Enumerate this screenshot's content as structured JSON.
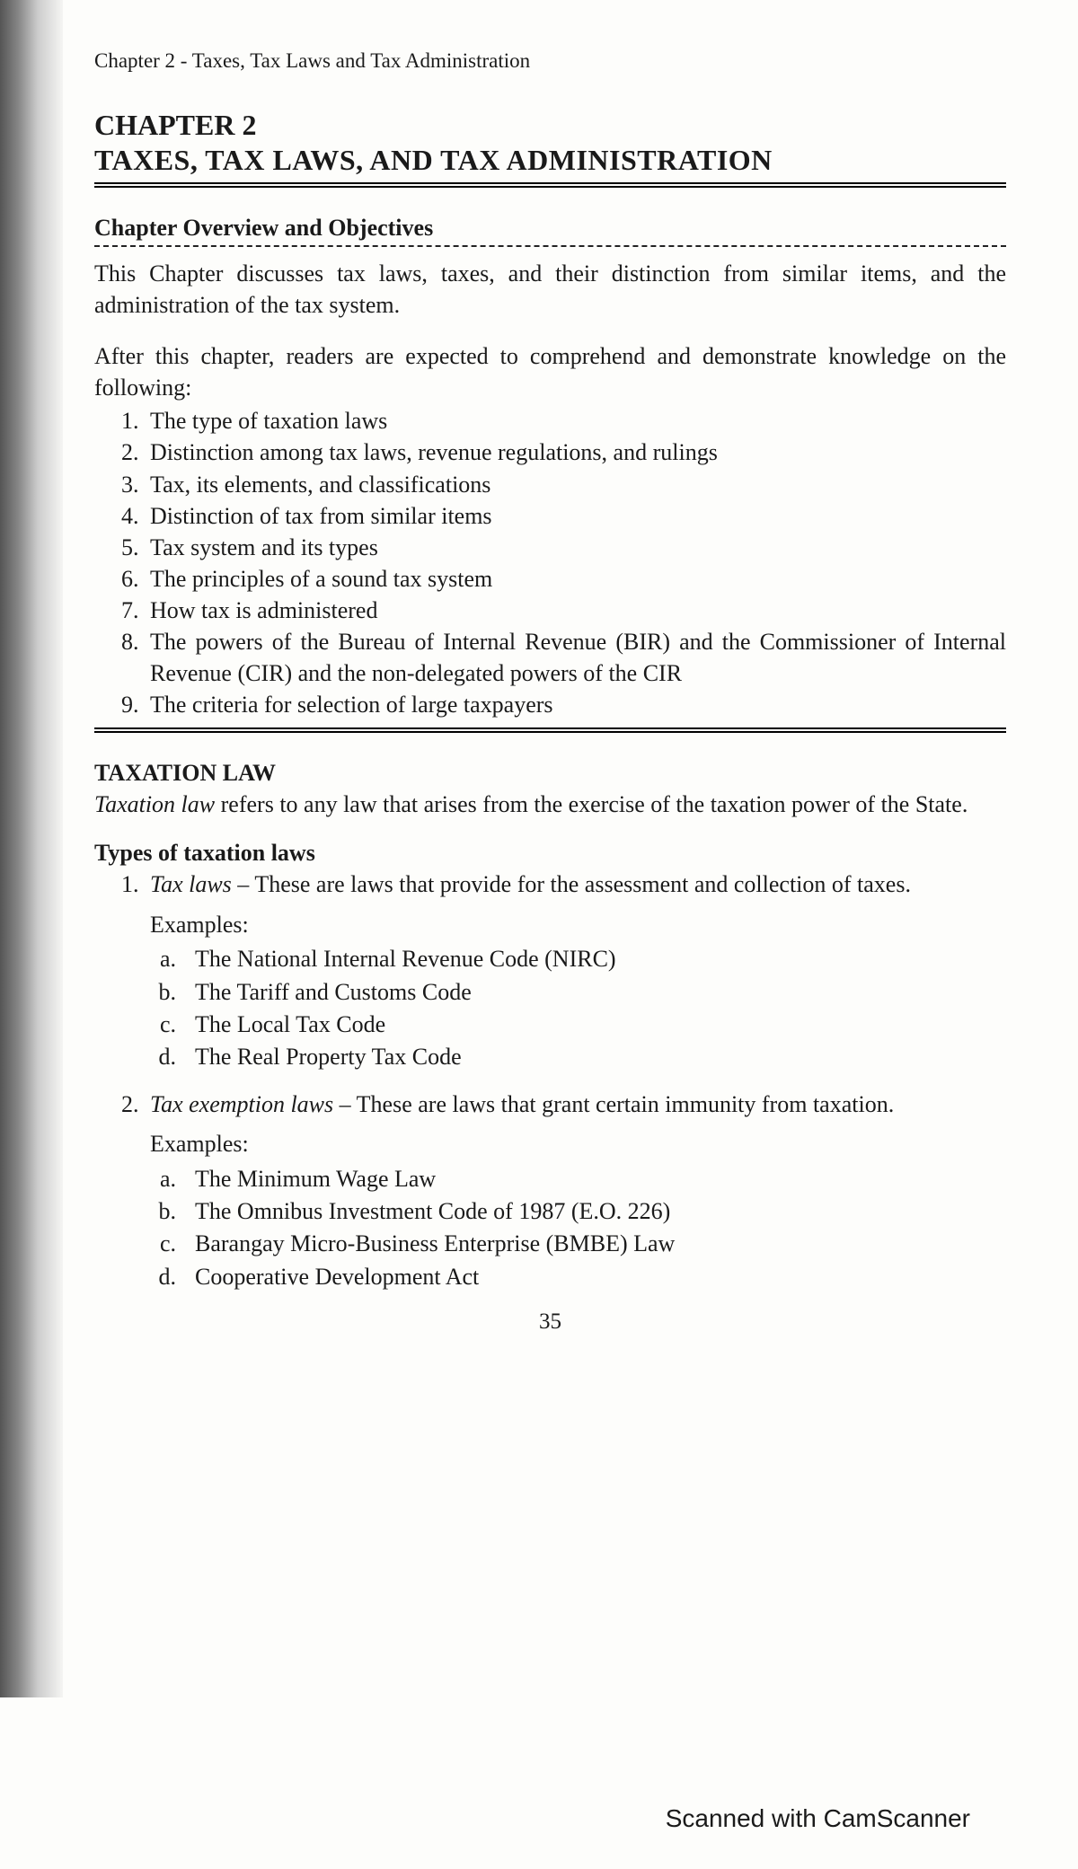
{
  "running_head": "Chapter 2 - Taxes, Tax Laws and Tax Administration",
  "chapter_label": "CHAPTER 2",
  "chapter_title": "TAXES, TAX LAWS, AND TAX ADMINISTRATION",
  "overview_heading": "Chapter Overview and Objectives",
  "overview_para": "This Chapter discusses tax laws, taxes, and their distinction from similar items, and the administration of the tax system.",
  "objectives_intro": "After this chapter, readers are expected to comprehend and demonstrate knowledge on the following:",
  "objectives": [
    "The type of taxation laws",
    "Distinction among tax laws, revenue regulations, and rulings",
    "Tax, its elements, and classifications",
    "Distinction of tax from similar items",
    "Tax system and its types",
    "The principles of a sound tax system",
    "How tax is administered",
    "The powers of the Bureau of Internal Revenue (BIR) and the Commissioner of Internal Revenue (CIR) and the non-delegated powers of the CIR",
    "The criteria for selection of large taxpayers"
  ],
  "taxlaw_heading": "TAXATION LAW",
  "taxlaw_term": "Taxation law",
  "taxlaw_rest": " refers to any law that arises from the exercise of the taxation power of the State.",
  "types_heading": "Types of taxation laws",
  "types": [
    {
      "term": "Tax laws",
      "def": " – These are laws that provide for the assessment and collection of taxes.",
      "examples_label": "Examples:",
      "examples": [
        "The National Internal Revenue Code (NIRC)",
        "The Tariff and Customs Code",
        "The Local Tax Code",
        "The Real Property Tax Code"
      ]
    },
    {
      "term": "Tax exemption laws",
      "def": " – These are laws that grant certain immunity from taxation.",
      "examples_label": "Examples:",
      "examples": [
        "The Minimum Wage Law",
        "The Omnibus Investment Code of 1987 (E.O. 226)",
        "Barangay Micro-Business Enterprise (BMBE) Law",
        "Cooperative Development Act"
      ]
    }
  ],
  "page_number": "35",
  "watermark": "Scanned with CamScanner"
}
